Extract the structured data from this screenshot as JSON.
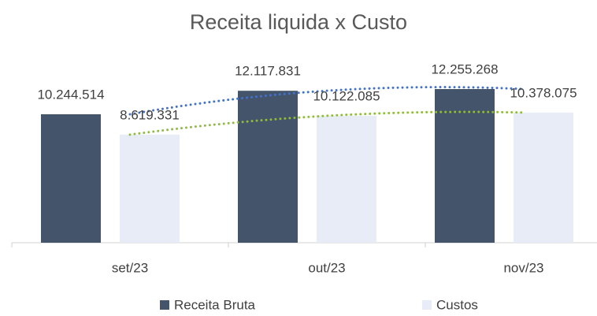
{
  "chart_data": {
    "type": "bar",
    "title": "Receita liquida  x  Custo",
    "categories": [
      "set/23",
      "out/23",
      "nov/23"
    ],
    "series": [
      {
        "name": "Receita Bruta",
        "color": "#44546a",
        "trend_color": "#4472c4",
        "values": [
          10244514,
          12117831,
          12255268
        ],
        "value_labels": [
          "10.244.514",
          "12.117.831",
          "12.255.268"
        ]
      },
      {
        "name": "Custos",
        "color": "#e8ecf6",
        "trend_color": "#8fbc3a",
        "values": [
          8619331,
          10122085,
          10378075
        ],
        "value_labels": [
          "8.619.331",
          "10.122.085",
          "10.378.075"
        ]
      }
    ],
    "trendline": true,
    "legend": "bottom"
  }
}
